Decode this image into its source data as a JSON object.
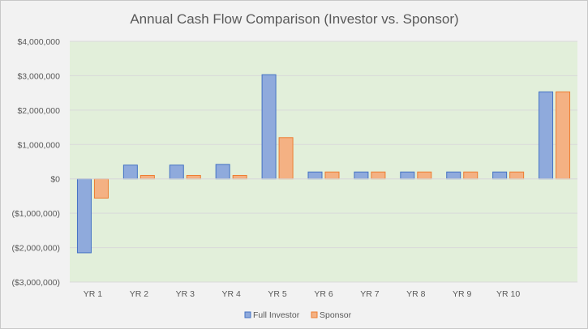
{
  "chart_data": {
    "type": "bar",
    "title": "Annual Cash Flow Comparison (Investor vs. Sponsor)",
    "categories": [
      "YR 1",
      "YR 2",
      "YR 3",
      "YR 4",
      "YR 5",
      "YR 6",
      "YR 7",
      "YR 8",
      "YR 9",
      "YR 10",
      ""
    ],
    "series": [
      {
        "name": "Full Investor",
        "color": "#8FAADC",
        "stroke": "#4472C4",
        "values": [
          -2150000,
          400000,
          400000,
          420000,
          3030000,
          200000,
          200000,
          200000,
          200000,
          200000,
          2530000
        ]
      },
      {
        "name": "Sponsor",
        "color": "#F4B183",
        "stroke": "#ED7D31",
        "values": [
          -560000,
          100000,
          100000,
          100000,
          1200000,
          200000,
          200000,
          200000,
          200000,
          200000,
          2530000
        ]
      }
    ],
    "yticks": [
      "$4,000,000",
      "$3,000,000",
      "$2,000,000",
      "$1,000,000",
      "$0",
      "($1,000,000)",
      "($2,000,000)",
      "($3,000,000)"
    ],
    "ylim": [
      -3000000,
      4000000
    ],
    "grid": true,
    "plot_background": "#E2EFDA",
    "legend_position": "bottom"
  }
}
